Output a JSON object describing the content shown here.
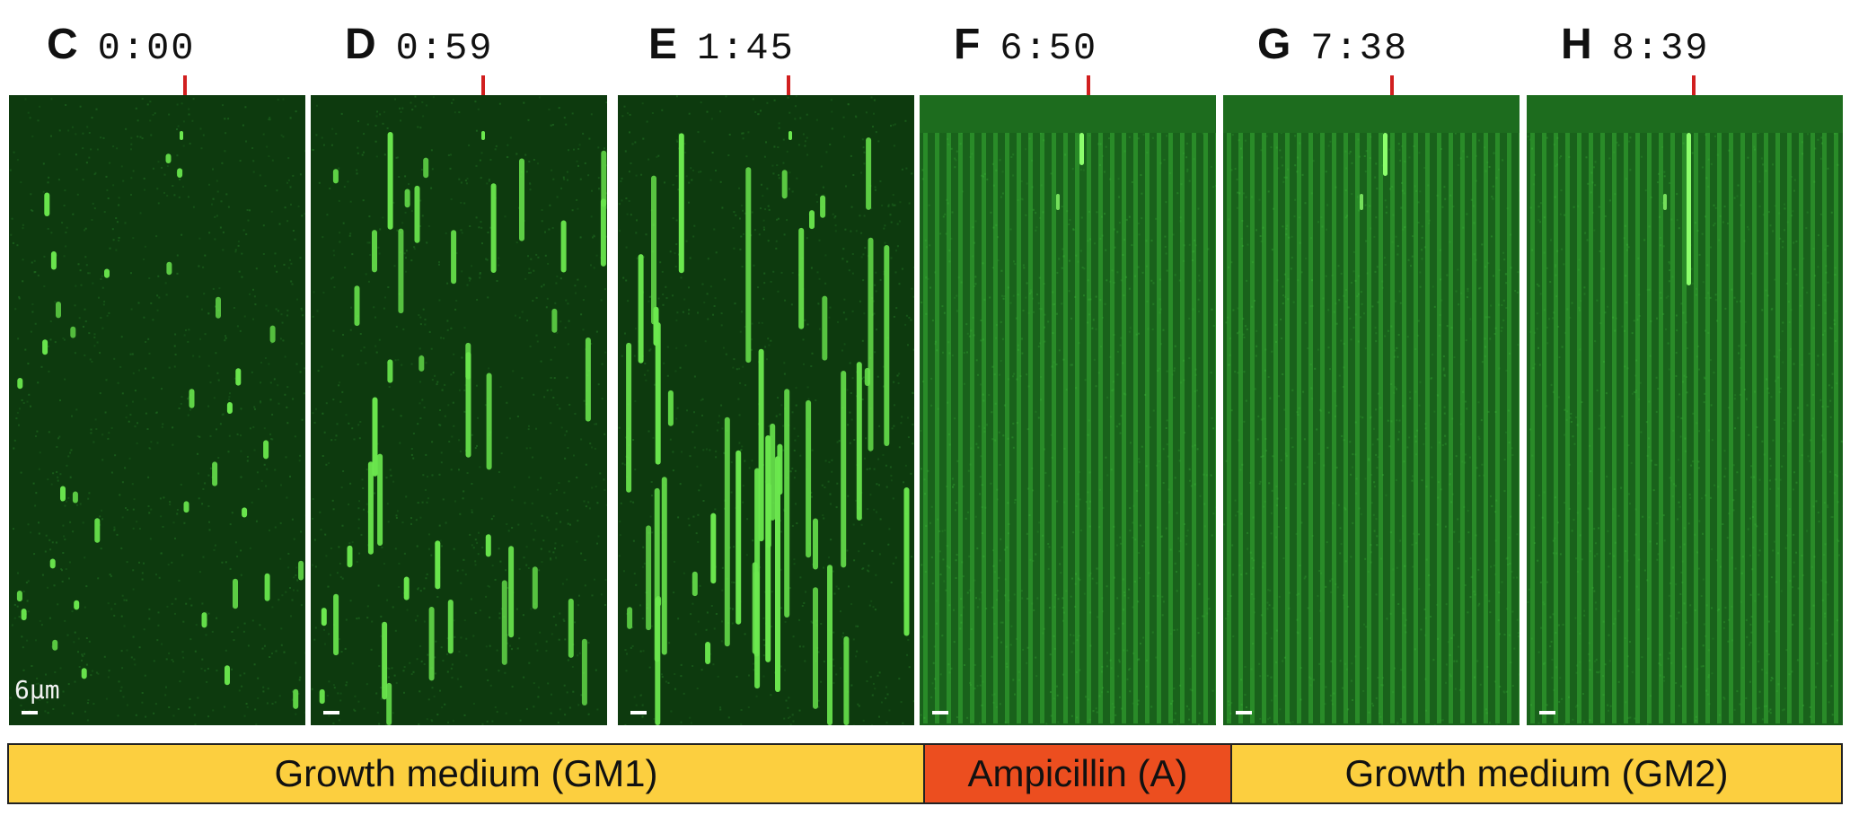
{
  "panels": [
    {
      "letter": "C",
      "time": "0:00",
      "stage": "growth",
      "phase": 0
    },
    {
      "letter": "D",
      "time": "0:59",
      "stage": "growth",
      "phase": 1
    },
    {
      "letter": "E",
      "time": "1:45",
      "stage": "growth",
      "phase": 2
    },
    {
      "letter": "F",
      "time": "6:50",
      "stage": "filament",
      "phase": 3
    },
    {
      "letter": "G",
      "time": "7:38",
      "stage": "filament",
      "phase": 4
    },
    {
      "letter": "H",
      "time": "8:39",
      "stage": "filament",
      "phase": 5
    }
  ],
  "scale_bar_label": "6μm",
  "treatment_bar": [
    {
      "label": "Growth medium (GM1)",
      "color": "#fccf3f"
    },
    {
      "label": "Ampicillin (A)",
      "color": "#ec4e1f"
    },
    {
      "label": "Growth medium (GM2)",
      "color": "#fccf3f"
    }
  ],
  "colors": {
    "arrow": "#d11f1f",
    "cell_fluorescence": "#6be84e",
    "background_dark": "#0d3a0e",
    "background_bright": "#19621b"
  }
}
